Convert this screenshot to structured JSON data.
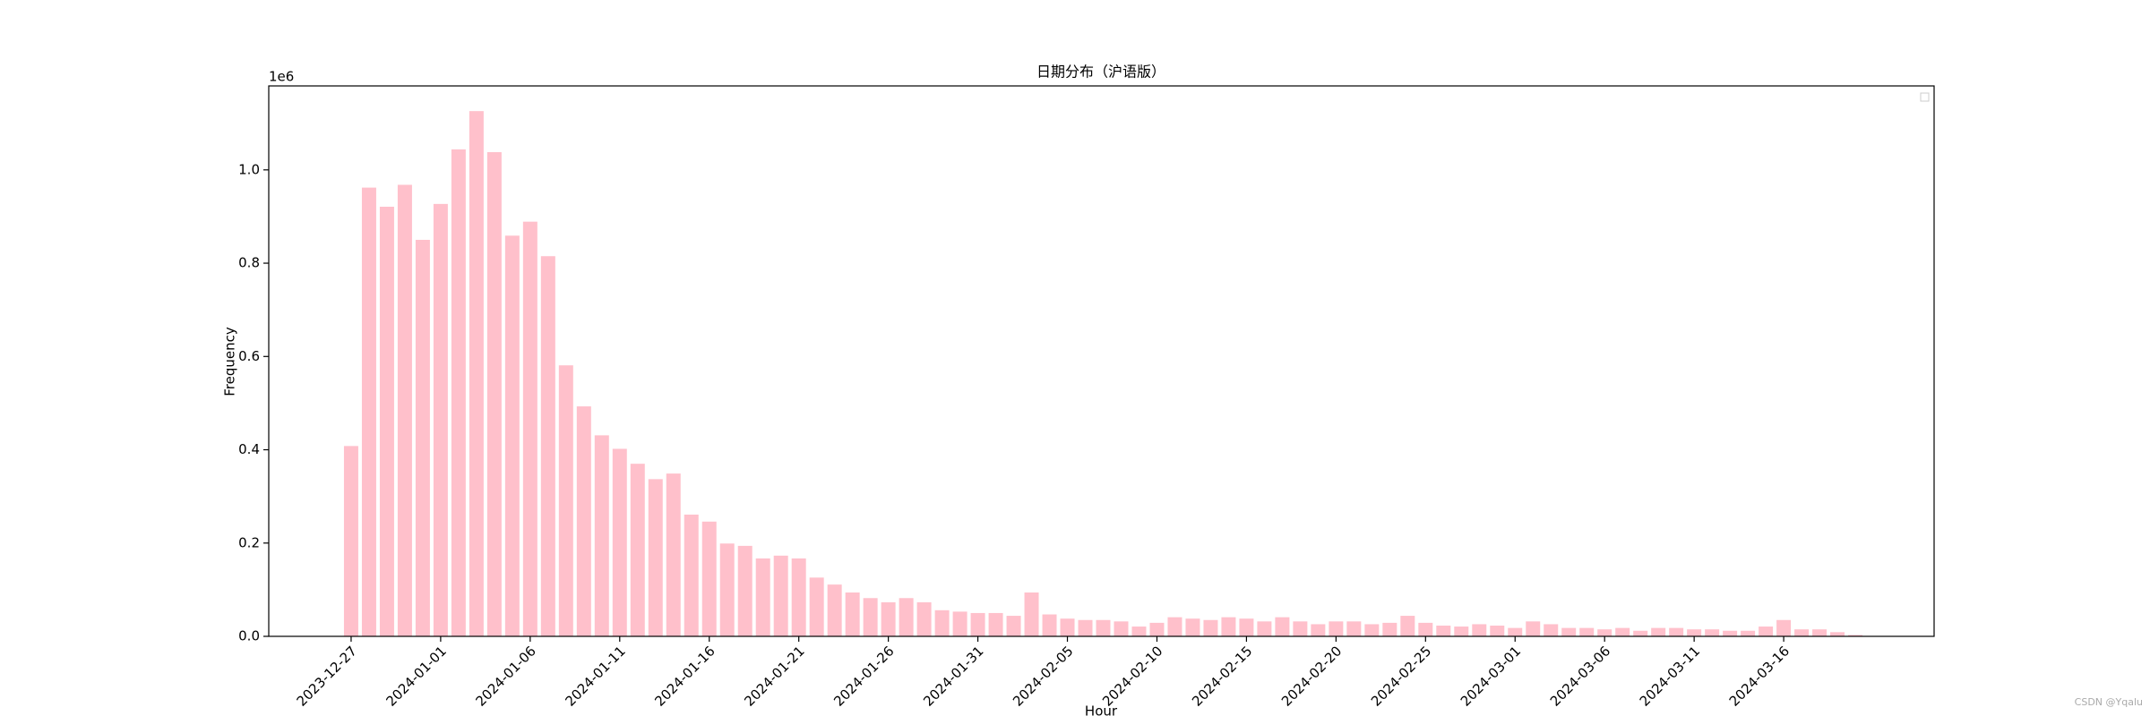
{
  "chart_data": {
    "type": "bar",
    "title": "日期分布（沪语版）",
    "x_label": "Hour",
    "y_label": "Frequency",
    "y_offset_label": "1e6",
    "watermark": "CSDN @Yqalu",
    "color": "#ffc0cb",
    "grid": false,
    "categories": [
      "2023-12-27",
      null,
      null,
      null,
      null,
      "2024-01-01",
      null,
      null,
      null,
      null,
      "2024-01-06",
      null,
      null,
      null,
      null,
      "2024-01-11",
      null,
      null,
      null,
      null,
      "2024-01-16",
      null,
      null,
      null,
      null,
      "2024-01-21",
      null,
      null,
      null,
      null,
      "2024-01-26",
      null,
      null,
      null,
      null,
      "2024-01-31",
      null,
      null,
      null,
      null,
      "2024-02-05",
      null,
      null,
      null,
      null,
      "2024-02-10",
      null,
      null,
      null,
      null,
      "2024-02-15",
      null,
      null,
      null,
      null,
      "2024-02-20",
      null,
      null,
      null,
      null,
      "2024-02-25",
      null,
      null,
      null,
      null,
      "2024-03-01",
      null,
      null,
      null,
      null,
      "2024-03-06",
      null,
      null,
      null,
      null,
      "2024-03-11",
      null,
      null,
      null,
      null,
      "2024-03-16",
      null,
      null,
      null,
      null
    ],
    "values": [
      408000,
      962000,
      921000,
      968000,
      850000,
      927000,
      1044000,
      1126000,
      1038000,
      859000,
      889000,
      815000,
      581000,
      493000,
      431000,
      402000,
      370000,
      337000,
      349000,
      261000,
      246000,
      199000,
      194000,
      167000,
      173000,
      167000,
      126000,
      111000,
      94000,
      82000,
      73000,
      82000,
      73000,
      56000,
      53000,
      50000,
      50000,
      44000,
      94000,
      47000,
      38000,
      35000,
      35000,
      32000,
      21000,
      29000,
      41000,
      38000,
      35000,
      41000,
      38000,
      32000,
      41000,
      32000,
      26000,
      32000,
      32000,
      26000,
      29000,
      44000,
      29000,
      23000,
      21000,
      26000,
      23000,
      18000,
      32000,
      26000,
      18000,
      18000,
      15000,
      18000,
      12000,
      18000,
      18000,
      15000,
      15000,
      12000,
      12000,
      21000,
      35000,
      15000,
      15000,
      9000,
      3000
    ],
    "ylim": [
      0,
      1180000
    ],
    "yticks": [
      {
        "value": 0,
        "label": "0.0"
      },
      {
        "value": 200000,
        "label": "0.2"
      },
      {
        "value": 400000,
        "label": "0.4"
      },
      {
        "value": 600000,
        "label": "0.6"
      },
      {
        "value": 800000,
        "label": "0.8"
      },
      {
        "value": 1000000,
        "label": "1.0"
      }
    ]
  }
}
